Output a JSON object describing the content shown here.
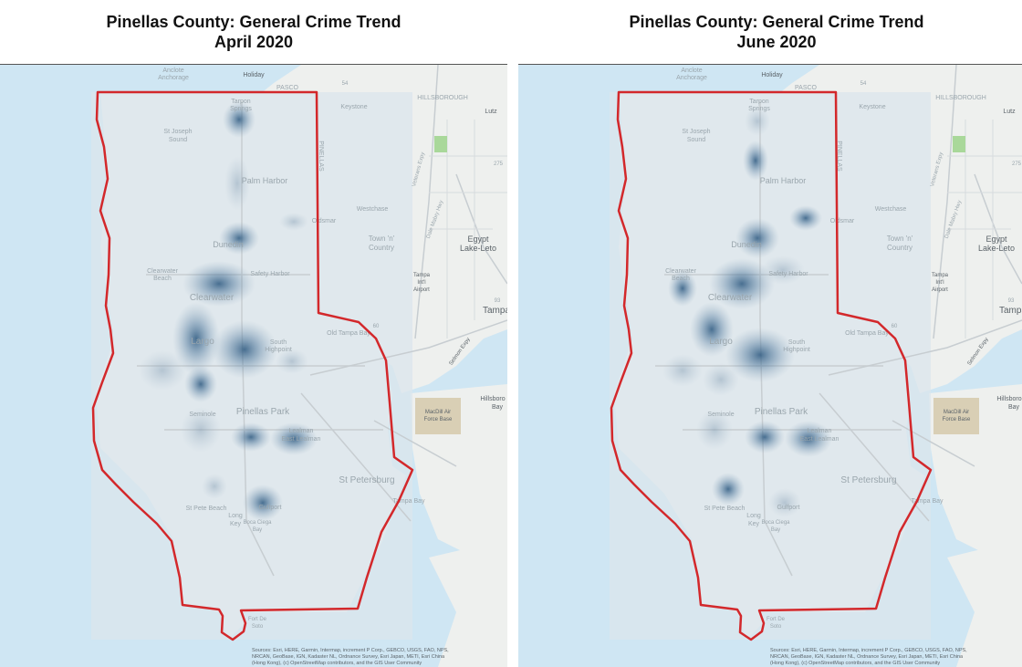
{
  "maps": [
    {
      "title_line1": "Pinellas County: General Crime Trend",
      "title_line2": "April 2020",
      "hotspots": [
        {
          "place": "Tarpon Springs",
          "intensity": 0.6
        },
        {
          "place": "Palm Harbor",
          "intensity": 0.2
        },
        {
          "place": "Dunedin",
          "intensity": 0.55
        },
        {
          "place": "Clearwater",
          "intensity": 0.75
        },
        {
          "place": "Largo",
          "intensity": 0.9
        },
        {
          "place": "Seminole",
          "intensity": 0.55
        },
        {
          "place": "South Highpoint",
          "intensity": 0.8
        },
        {
          "place": "Pinellas Park",
          "intensity": 0.45
        },
        {
          "place": "Lealman",
          "intensity": 0.75
        },
        {
          "place": "St Pete Beach",
          "intensity": 0.35
        },
        {
          "place": "Gulfport",
          "intensity": 0.7
        },
        {
          "place": "Oldsmar",
          "intensity": 0.3
        }
      ]
    },
    {
      "title_line1": "Pinellas County: General Crime Trend",
      "title_line2": "June 2020",
      "hotspots": [
        {
          "place": "Tarpon Springs",
          "intensity": 0.35
        },
        {
          "place": "Palm Harbor",
          "intensity": 0.5
        },
        {
          "place": "Dunedin",
          "intensity": 0.6
        },
        {
          "place": "Clearwater Beach",
          "intensity": 0.55
        },
        {
          "place": "Clearwater",
          "intensity": 0.65
        },
        {
          "place": "Largo",
          "intensity": 0.85
        },
        {
          "place": "Seminole",
          "intensity": 0.5
        },
        {
          "place": "South Highpoint",
          "intensity": 0.9
        },
        {
          "place": "Pinellas Park",
          "intensity": 0.45
        },
        {
          "place": "Lealman",
          "intensity": 0.8
        },
        {
          "place": "St Pete Beach",
          "intensity": 0.55
        },
        {
          "place": "Gulfport",
          "intensity": 0.5
        },
        {
          "place": "Oldsmar",
          "intensity": 0.45
        }
      ]
    }
  ],
  "basemap_labels": {
    "anclote": "Anclote",
    "anchorage": "Anchorage",
    "holiday": "Holiday",
    "pasco": "PASCO",
    "hillsborough": "HILLSBOROUGH",
    "lutz": "Lutz",
    "keystone": "Keystone",
    "tarpon1": "Tarpon",
    "tarpon2": "Springs",
    "st_joseph1": "St Joseph",
    "st_joseph2": "Sound",
    "palm_harbor": "Palm Harbor",
    "westchase": "Westchase",
    "oldsmar": "Oldsmar",
    "egypt1": "Egypt",
    "egypt2": "Lake-Leto",
    "dunedin": "Dunedin",
    "town1": "Town 'n'",
    "town2": "Country",
    "clearwater_beach1": "Clearwater",
    "clearwater_beach2": "Beach",
    "safety_harbor": "Safety Harbor",
    "tampa_airport1": "Tampa",
    "tampa_airport2": "Int'l",
    "tampa_airport3": "Airport",
    "clearwater": "Clearwater",
    "tampa": "Tampa",
    "old_tampa_bay": "Old Tampa Bay",
    "largo": "Largo",
    "south1": "South",
    "south2": "Highpoint",
    "macdill1": "MacDill Air",
    "macdill2": "Force Base",
    "hillsborough_bay1": "Hillsboro",
    "hillsborough_bay2": "Bay",
    "seminole": "Seminole",
    "pinellas_park": "Pinellas Park",
    "lealman1": "Lealman",
    "lealman2": "East Lealman",
    "st_petersburg": "St Petersburg",
    "tampa_bay": "Tampa Bay",
    "st_pete_beach": "St Pete Beach",
    "gulfport": "Gulfport",
    "long_key1": "Long",
    "long_key2": "Key",
    "boca1": "Boca Ciega",
    "boca2": "Bay",
    "fort1": "Fort De",
    "fort2": "Soto",
    "pinellas_vert": "PINELLAS",
    "road_275": "275",
    "road_93": "93",
    "road_54": "54",
    "road_60": "60",
    "veterans": "Veterans Expy",
    "dale": "Dale Mabry Hwy",
    "selmon": "Selmon Expy"
  },
  "attribution": {
    "line1": "Sources: Esri, HERE, Garmin, Intermap, increment P Corp., GEBCO, USGS, FAO, NPS,",
    "line2": "NRCAN, GeoBase, IGN, Kadaster NL, Ordnance Survey, Esri Japan, METI, Esri China",
    "line3": "(Hong Kong), (c) OpenStreetMap contributors, and the GIS User Community"
  },
  "colors": {
    "water": "#cfe6f3",
    "land": "#eef0ee",
    "overlay": "#dbe6ec",
    "boundary": "#d3282b",
    "heat": "#2d5980"
  }
}
